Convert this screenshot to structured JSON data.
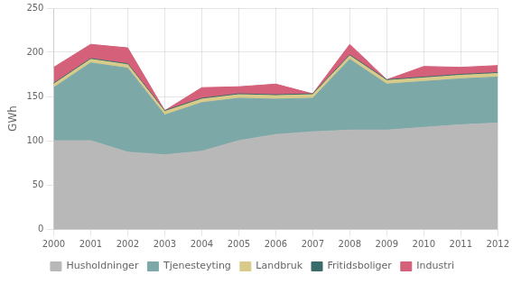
{
  "chart_data": {
    "type": "area",
    "stacked": true,
    "categories": [
      "2000",
      "2001",
      "2002",
      "2003",
      "2004",
      "2005",
      "2006",
      "2007",
      "2008",
      "2009",
      "2010",
      "2011",
      "2012"
    ],
    "series": [
      {
        "name": "Husholdninger",
        "color": "#b8b8b8",
        "values": [
          100,
          100,
          87,
          84,
          88,
          100,
          107,
          110,
          112,
          112,
          115,
          118,
          120
        ]
      },
      {
        "name": "Tjenesteyting",
        "color": "#7da8a8",
        "values": [
          60,
          88,
          95,
          45,
          55,
          48,
          40,
          38,
          80,
          52,
          52,
          52,
          52
        ]
      },
      {
        "name": "Landbruk",
        "color": "#d8cb8a",
        "values": [
          4,
          4,
          4,
          4,
          4,
          4,
          4,
          4,
          4,
          4,
          4,
          4,
          4
        ]
      },
      {
        "name": "Fritidsboliger",
        "color": "#3a6b6b",
        "values": [
          1,
          1,
          1,
          1,
          1,
          1,
          1,
          1,
          1,
          1,
          1,
          1,
          1
        ]
      },
      {
        "name": "Industri",
        "color": "#d4607a",
        "values": [
          18,
          16,
          18,
          0,
          12,
          8,
          12,
          0,
          12,
          0,
          12,
          8,
          8
        ]
      }
    ],
    "ylabel": "GWh",
    "ylim": [
      0,
      250
    ],
    "yticks": [
      0,
      50,
      100,
      150,
      200,
      250
    ],
    "grid": true,
    "legend": "bottom"
  }
}
